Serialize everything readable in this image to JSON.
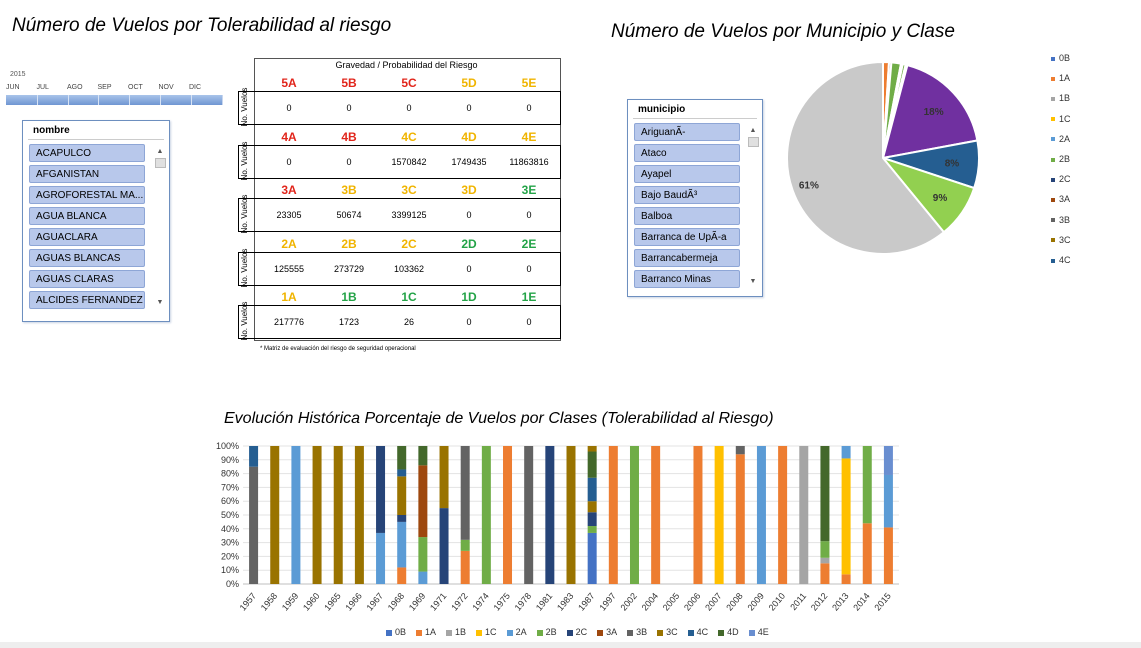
{
  "titles": {
    "tolerability": "Número de Vuelos por Tolerabilidad al riesgo",
    "municipio_clase": "Número de Vuelos por Municipio y Clase",
    "evolucion": "Evolución Histórica Porcentaje de Vuelos por Clases (Tolerabilidad al Riesgo)"
  },
  "timeline": {
    "year": "2015",
    "months": [
      "JUN",
      "JUL",
      "AGO",
      "SEP",
      "OCT",
      "NOV",
      "DIC"
    ]
  },
  "slicer_nombre": {
    "header": "nombre",
    "items": [
      "ACAPULCO",
      "AFGANISTAN",
      "AGROFORESTAL MA...",
      "AGUA BLANCA",
      "AGUACLARA",
      "AGUAS BLANCAS",
      "AGUAS CLARAS",
      "ALCIDES FERNANDEZ"
    ]
  },
  "slicer_municipio": {
    "header": "municipio",
    "items": [
      "AriguanÃ-",
      "Ataco",
      "Ayapel",
      "Bajo BaudÃ³",
      "Balboa",
      "Barranca de UpÃ-a",
      "Barrancabermeja",
      "Barranco Minas"
    ]
  },
  "matrix": {
    "header": "Gravedad / Probabilidad del Riesgo",
    "row_label": "No. Vuelos",
    "note": "* Matriz de evaluación del riesgo de seguridad operacional",
    "colors": {
      "red": "#e1251b",
      "yellow": "#f0b400",
      "green": "#23a347"
    },
    "rows": [
      {
        "letters": [
          [
            "5A",
            "red"
          ],
          [
            "5B",
            "red"
          ],
          [
            "5C",
            "red"
          ],
          [
            "5D",
            "yellow"
          ],
          [
            "5E",
            "yellow"
          ]
        ],
        "values": [
          "0",
          "0",
          "0",
          "0",
          "0"
        ]
      },
      {
        "letters": [
          [
            "4A",
            "red"
          ],
          [
            "4B",
            "red"
          ],
          [
            "4C",
            "yellow"
          ],
          [
            "4D",
            "yellow"
          ],
          [
            "4E",
            "yellow"
          ]
        ],
        "values": [
          "0",
          "0",
          "1570842",
          "1749435",
          "11863816"
        ]
      },
      {
        "letters": [
          [
            "3A",
            "red"
          ],
          [
            "3B",
            "yellow"
          ],
          [
            "3C",
            "yellow"
          ],
          [
            "3D",
            "yellow"
          ],
          [
            "3E",
            "green"
          ]
        ],
        "values": [
          "23305",
          "50674",
          "3399125",
          "0",
          "0"
        ]
      },
      {
        "letters": [
          [
            "2A",
            "yellow"
          ],
          [
            "2B",
            "yellow"
          ],
          [
            "2C",
            "yellow"
          ],
          [
            "2D",
            "green"
          ],
          [
            "2E",
            "green"
          ]
        ],
        "values": [
          "125555",
          "273729",
          "103362",
          "0",
          "0"
        ]
      },
      {
        "letters": [
          [
            "1A",
            "yellow"
          ],
          [
            "1B",
            "green"
          ],
          [
            "1C",
            "green"
          ],
          [
            "1D",
            "green"
          ],
          [
            "1E",
            "green"
          ]
        ],
        "values": [
          "217776",
          "1723",
          "26",
          "0",
          "0"
        ]
      }
    ]
  },
  "series_colors": {
    "0B": "#4472c4",
    "1A": "#ed7d31",
    "1B": "#a5a5a5",
    "1C": "#ffc000",
    "2A": "#5b9bd5",
    "2B": "#70ad47",
    "2C": "#264478",
    "3A": "#9e480e",
    "3B": "#636363",
    "3C": "#997300",
    "4C": "#255e91",
    "4D": "#43682b",
    "4E": "#698ed0"
  },
  "pie_legend": [
    "0B",
    "1A",
    "1B",
    "1C",
    "2A",
    "2B",
    "2C",
    "3A",
    "3B",
    "3C",
    "4C"
  ],
  "chart_data": [
    {
      "type": "pie",
      "title": "Número de Vuelos por Municipio y Clase",
      "slices": [
        {
          "label": "1A",
          "value": 1,
          "color": "#ed7d31",
          "shown": ""
        },
        {
          "label": "1B",
          "value": 0.4,
          "color": "#a5a5a5",
          "shown": ""
        },
        {
          "label": "2B",
          "value": 1.6,
          "color": "#70ad47",
          "shown": ""
        },
        {
          "label": "1B",
          "value": 0.3,
          "color": "#a5a5a5",
          "shown": ""
        },
        {
          "label": "2B",
          "value": 0.5,
          "color": "#70ad47",
          "shown": ""
        },
        {
          "label": "2C",
          "value": 0.3,
          "color": "#264478",
          "shown": ""
        },
        {
          "label": "3C",
          "value": 18,
          "color": "#7030a0",
          "shown": "18%"
        },
        {
          "label": "4C",
          "value": 8,
          "color": "#255e91",
          "shown": "8%"
        },
        {
          "label": "2B",
          "value": 9,
          "color": "#92d050",
          "shown": "9%"
        },
        {
          "label": "3B",
          "value": 61,
          "color": "#c9c9c9",
          "shown": "61%"
        }
      ]
    },
    {
      "type": "bar",
      "stacked": true,
      "title": "Evolución Histórica Porcentaje de Vuelos por Clases (Tolerabilidad al Riesgo)",
      "yticks": [
        "0%",
        "10%",
        "20%",
        "30%",
        "40%",
        "50%",
        "60%",
        "70%",
        "80%",
        "90%",
        "100%"
      ],
      "categories": [
        "1957",
        "1958",
        "1959",
        "1960",
        "1965",
        "1966",
        "1967",
        "1968",
        "1969",
        "1971",
        "1972",
        "1974",
        "1975",
        "1978",
        "1981",
        "1983",
        "1987",
        "1997",
        "2002",
        "2004",
        "2005",
        "2006",
        "2007",
        "2008",
        "2009",
        "2010",
        "2011",
        "2012",
        "2013",
        "2014",
        "2015"
      ],
      "legend": [
        "0B",
        "1A",
        "1B",
        "1C",
        "2A",
        "2B",
        "2C",
        "3A",
        "3B",
        "3C",
        "4C",
        "4D",
        "4E"
      ],
      "stacks": [
        [
          [
            "3B",
            85
          ],
          [
            "4C",
            15
          ]
        ],
        [
          [
            "3C",
            100
          ]
        ],
        [
          [
            "2A",
            100
          ]
        ],
        [
          [
            "3C",
            100
          ]
        ],
        [
          [
            "3C",
            100
          ]
        ],
        [
          [
            "3C",
            100
          ]
        ],
        [
          [
            "2A",
            37
          ],
          [
            "2C",
            63
          ]
        ],
        [
          [
            "1A",
            12
          ],
          [
            "2A",
            33
          ],
          [
            "2C",
            5
          ],
          [
            "3C",
            28
          ],
          [
            "4C",
            5
          ],
          [
            "4D",
            17
          ]
        ],
        [
          [
            "2A",
            9
          ],
          [
            "2B",
            25
          ],
          [
            "3A",
            52
          ],
          [
            "4D",
            14
          ]
        ],
        [
          [
            "2C",
            55
          ],
          [
            "3C",
            45
          ]
        ],
        [
          [
            "1A",
            24
          ],
          [
            "2B",
            8
          ],
          [
            "3B",
            68
          ]
        ],
        [
          [
            "2B",
            100
          ]
        ],
        [
          [
            "1A",
            100
          ]
        ],
        [
          [
            "3B",
            100
          ]
        ],
        [
          [
            "2C",
            100
          ]
        ],
        [
          [
            "3C",
            100
          ]
        ],
        [
          [
            "0B",
            37
          ],
          [
            "2B",
            5
          ],
          [
            "2C",
            10
          ],
          [
            "3C",
            8
          ],
          [
            "4C",
            17
          ],
          [
            "4D",
            19
          ],
          [
            "3C",
            4
          ]
        ],
        [
          [
            "1A",
            100
          ]
        ],
        [
          [
            "2B",
            100
          ]
        ],
        [
          [
            "1A",
            100
          ]
        ],
        [],
        [
          [
            "1A",
            100
          ]
        ],
        [
          [
            "1C",
            100
          ]
        ],
        [
          [
            "1A",
            94
          ],
          [
            "3B",
            6
          ]
        ],
        [
          [
            "2A",
            100
          ]
        ],
        [
          [
            "1A",
            100
          ]
        ],
        [
          [
            "1B",
            100
          ]
        ],
        [
          [
            "1A",
            15
          ],
          [
            "1B",
            4
          ],
          [
            "2B",
            12
          ],
          [
            "4D",
            69
          ]
        ],
        [
          [
            "1A",
            7
          ],
          [
            "1C",
            84
          ],
          [
            "2A",
            9
          ]
        ],
        [
          [
            "1A",
            44
          ],
          [
            "2B",
            56
          ]
        ],
        [
          [
            "1A",
            41
          ],
          [
            "2A",
            38
          ],
          [
            "4E",
            21
          ]
        ]
      ]
    }
  ]
}
